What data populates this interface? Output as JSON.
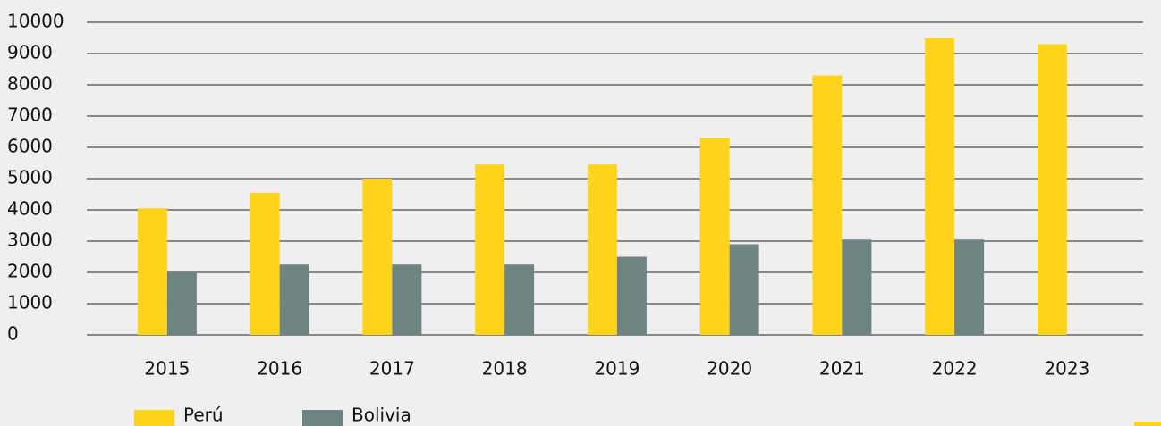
{
  "chart_data": {
    "type": "bar",
    "categories": [
      "2015",
      "2016",
      "2017",
      "2018",
      "2019",
      "2020",
      "2021",
      "2022",
      "2023"
    ],
    "series": [
      {
        "name": "Perú",
        "color": "#fdd31c",
        "values": [
          4050,
          4550,
          5000,
          5450,
          5450,
          6300,
          8300,
          9500,
          9300
        ]
      },
      {
        "name": "Bolivia",
        "color": "#6e8483",
        "values": [
          2000,
          2250,
          2250,
          2250,
          2500,
          2900,
          3050,
          3050,
          null
        ]
      }
    ],
    "ylim": [
      0,
      10000
    ],
    "yticks": [
      0,
      1000,
      2000,
      3000,
      4000,
      5000,
      6000,
      7000,
      8000,
      9000,
      10000
    ],
    "grid": true
  }
}
